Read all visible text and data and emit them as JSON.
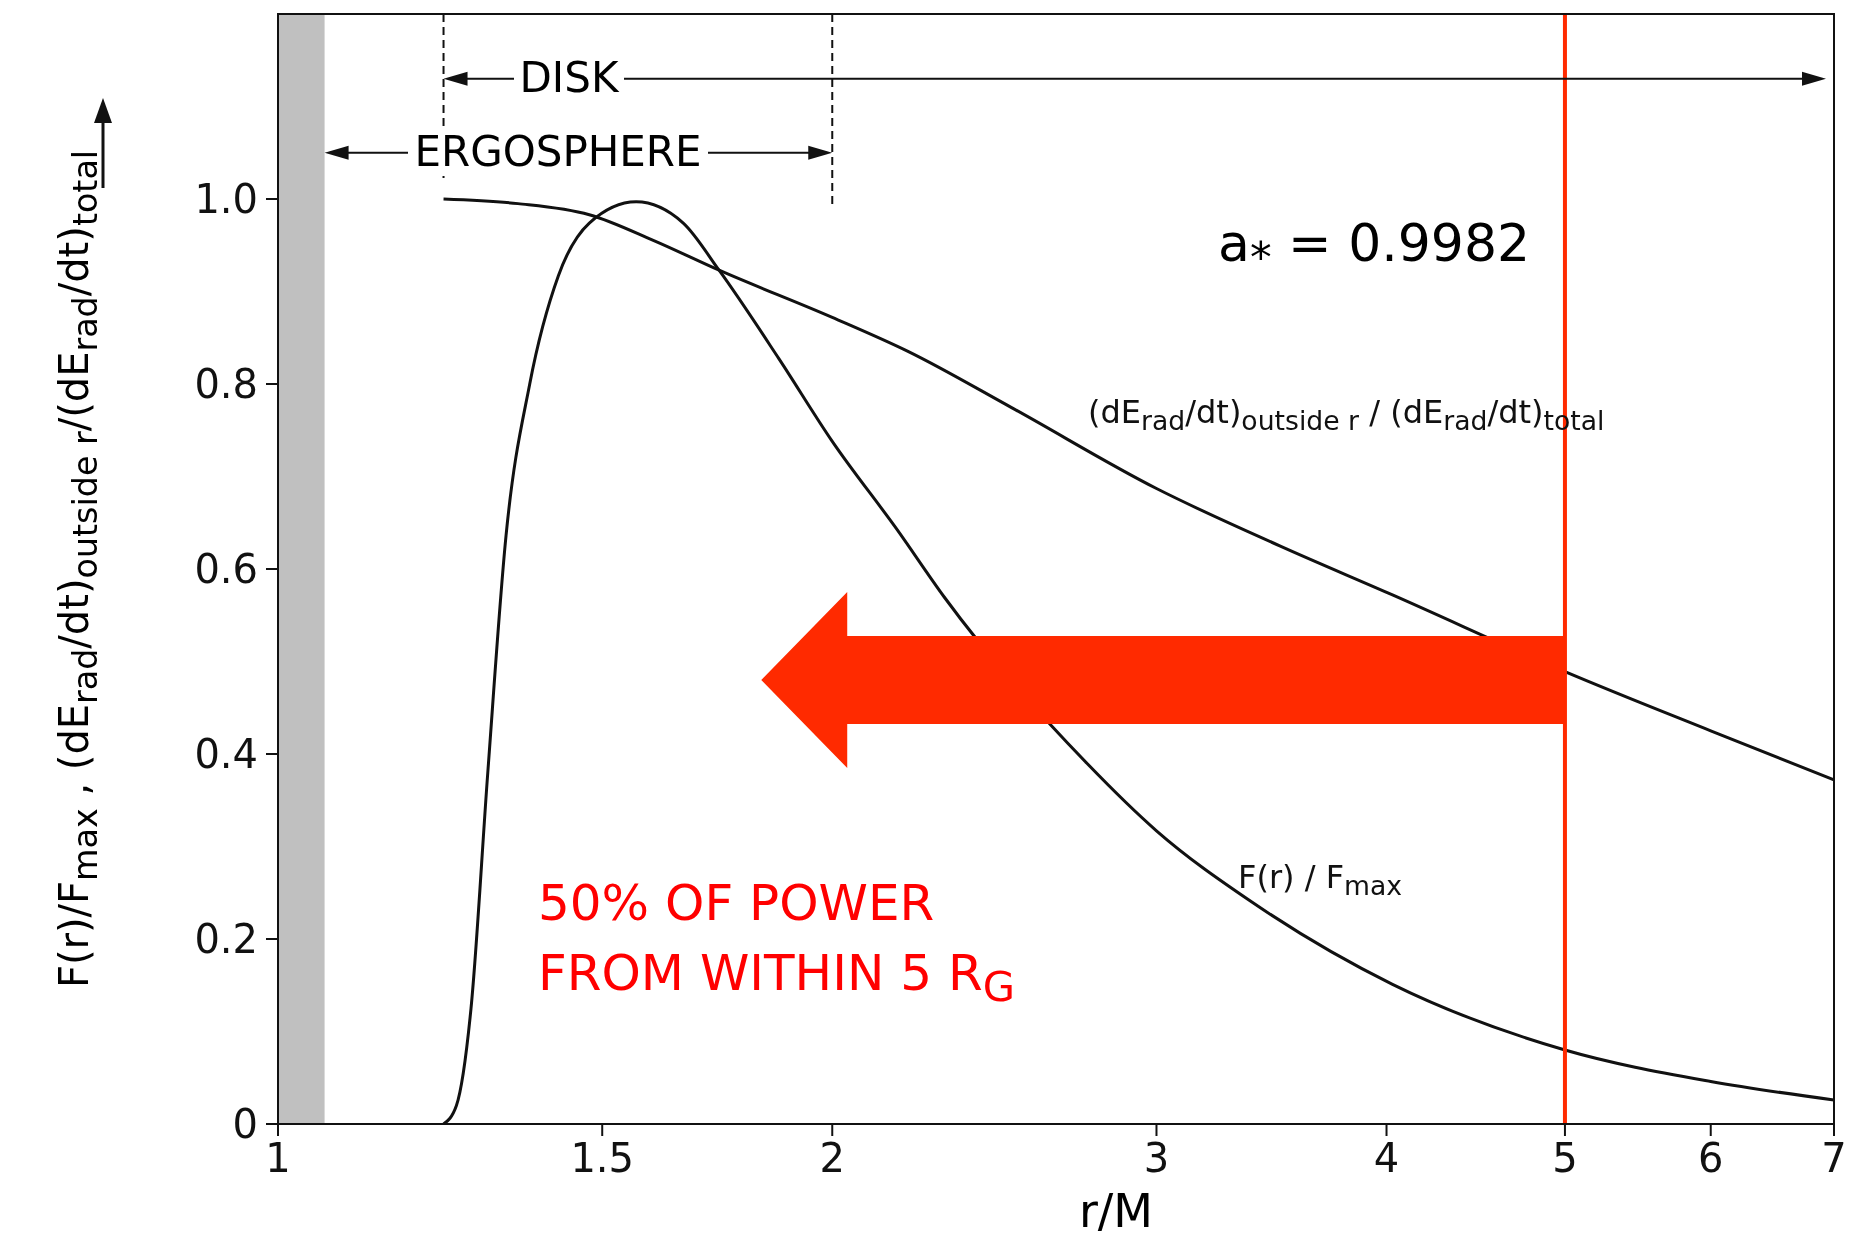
{
  "chart_data": {
    "type": "line",
    "xlabel": "r/M",
    "ylabel": "F(r)/F$_{max}$ , (dE$_{rad}$/dt)$_{outside r}$/(dE$_{rad}$/dt)$_{total}$",
    "log": "x",
    "xlim": [
      1,
      7
    ],
    "ylim": [
      0,
      1.2
    ],
    "xticks": [
      1,
      1.5,
      2,
      3,
      4,
      5,
      6,
      7
    ],
    "yticks": [
      0,
      0.2,
      0.4,
      0.6,
      0.8,
      {
        "value": 1,
        "label": "1.0"
      }
    ],
    "grid": false,
    "legend": false,
    "marker": "none",
    "line_style": "solid",
    "series": [
      {
        "name": "(dE$_{rad}$/dt)$_{outside r}$ / (dE$_{rad}$/dt)$_{total}$",
        "color": "#111111",
        "x": [
          1.23,
          1.35,
          1.476,
          1.6,
          1.736,
          2.0,
          2.2,
          2.5,
          3.0,
          3.5,
          4.03,
          5.0,
          6.0,
          7.0
        ],
        "values": [
          1.0,
          0.995,
          0.983,
          0.955,
          0.923,
          0.872,
          0.835,
          0.775,
          0.687,
          0.625,
          0.572,
          0.489,
          0.425,
          0.372
        ]
      },
      {
        "name": "F(r) / F$_{max}$",
        "color": "#111111",
        "x": [
          1.23,
          1.25,
          1.273,
          1.3,
          1.33,
          1.37,
          1.42,
          1.476,
          1.565,
          1.66,
          1.736,
          1.87,
          2.0,
          2.17,
          2.3,
          2.75,
          3.0,
          3.38,
          4.03,
          5.0,
          6.0,
          7.0
        ],
        "values": [
          0,
          0.02,
          0.125,
          0.38,
          0.636,
          0.8,
          0.917,
          0.974,
          0.997,
          0.974,
          0.923,
          0.828,
          0.738,
          0.642,
          0.57,
          0.39,
          0.317,
          0.24,
          0.151,
          0.08,
          0.046,
          0.026
        ]
      }
    ],
    "ref_lines": [
      {
        "axis": "x",
        "value": 5,
        "color": "#ff2a00"
      }
    ],
    "bands": [
      {
        "axis": "x",
        "from": 1,
        "to": 1.06,
        "color": "#b0b0b0"
      }
    ],
    "annotations": [
      "DISK",
      "ERGOSPHERE",
      "a$_{*}$ = 0.9982",
      "50% OF POWER FROM WITHIN 5 R$_{G}$"
    ]
  }
}
